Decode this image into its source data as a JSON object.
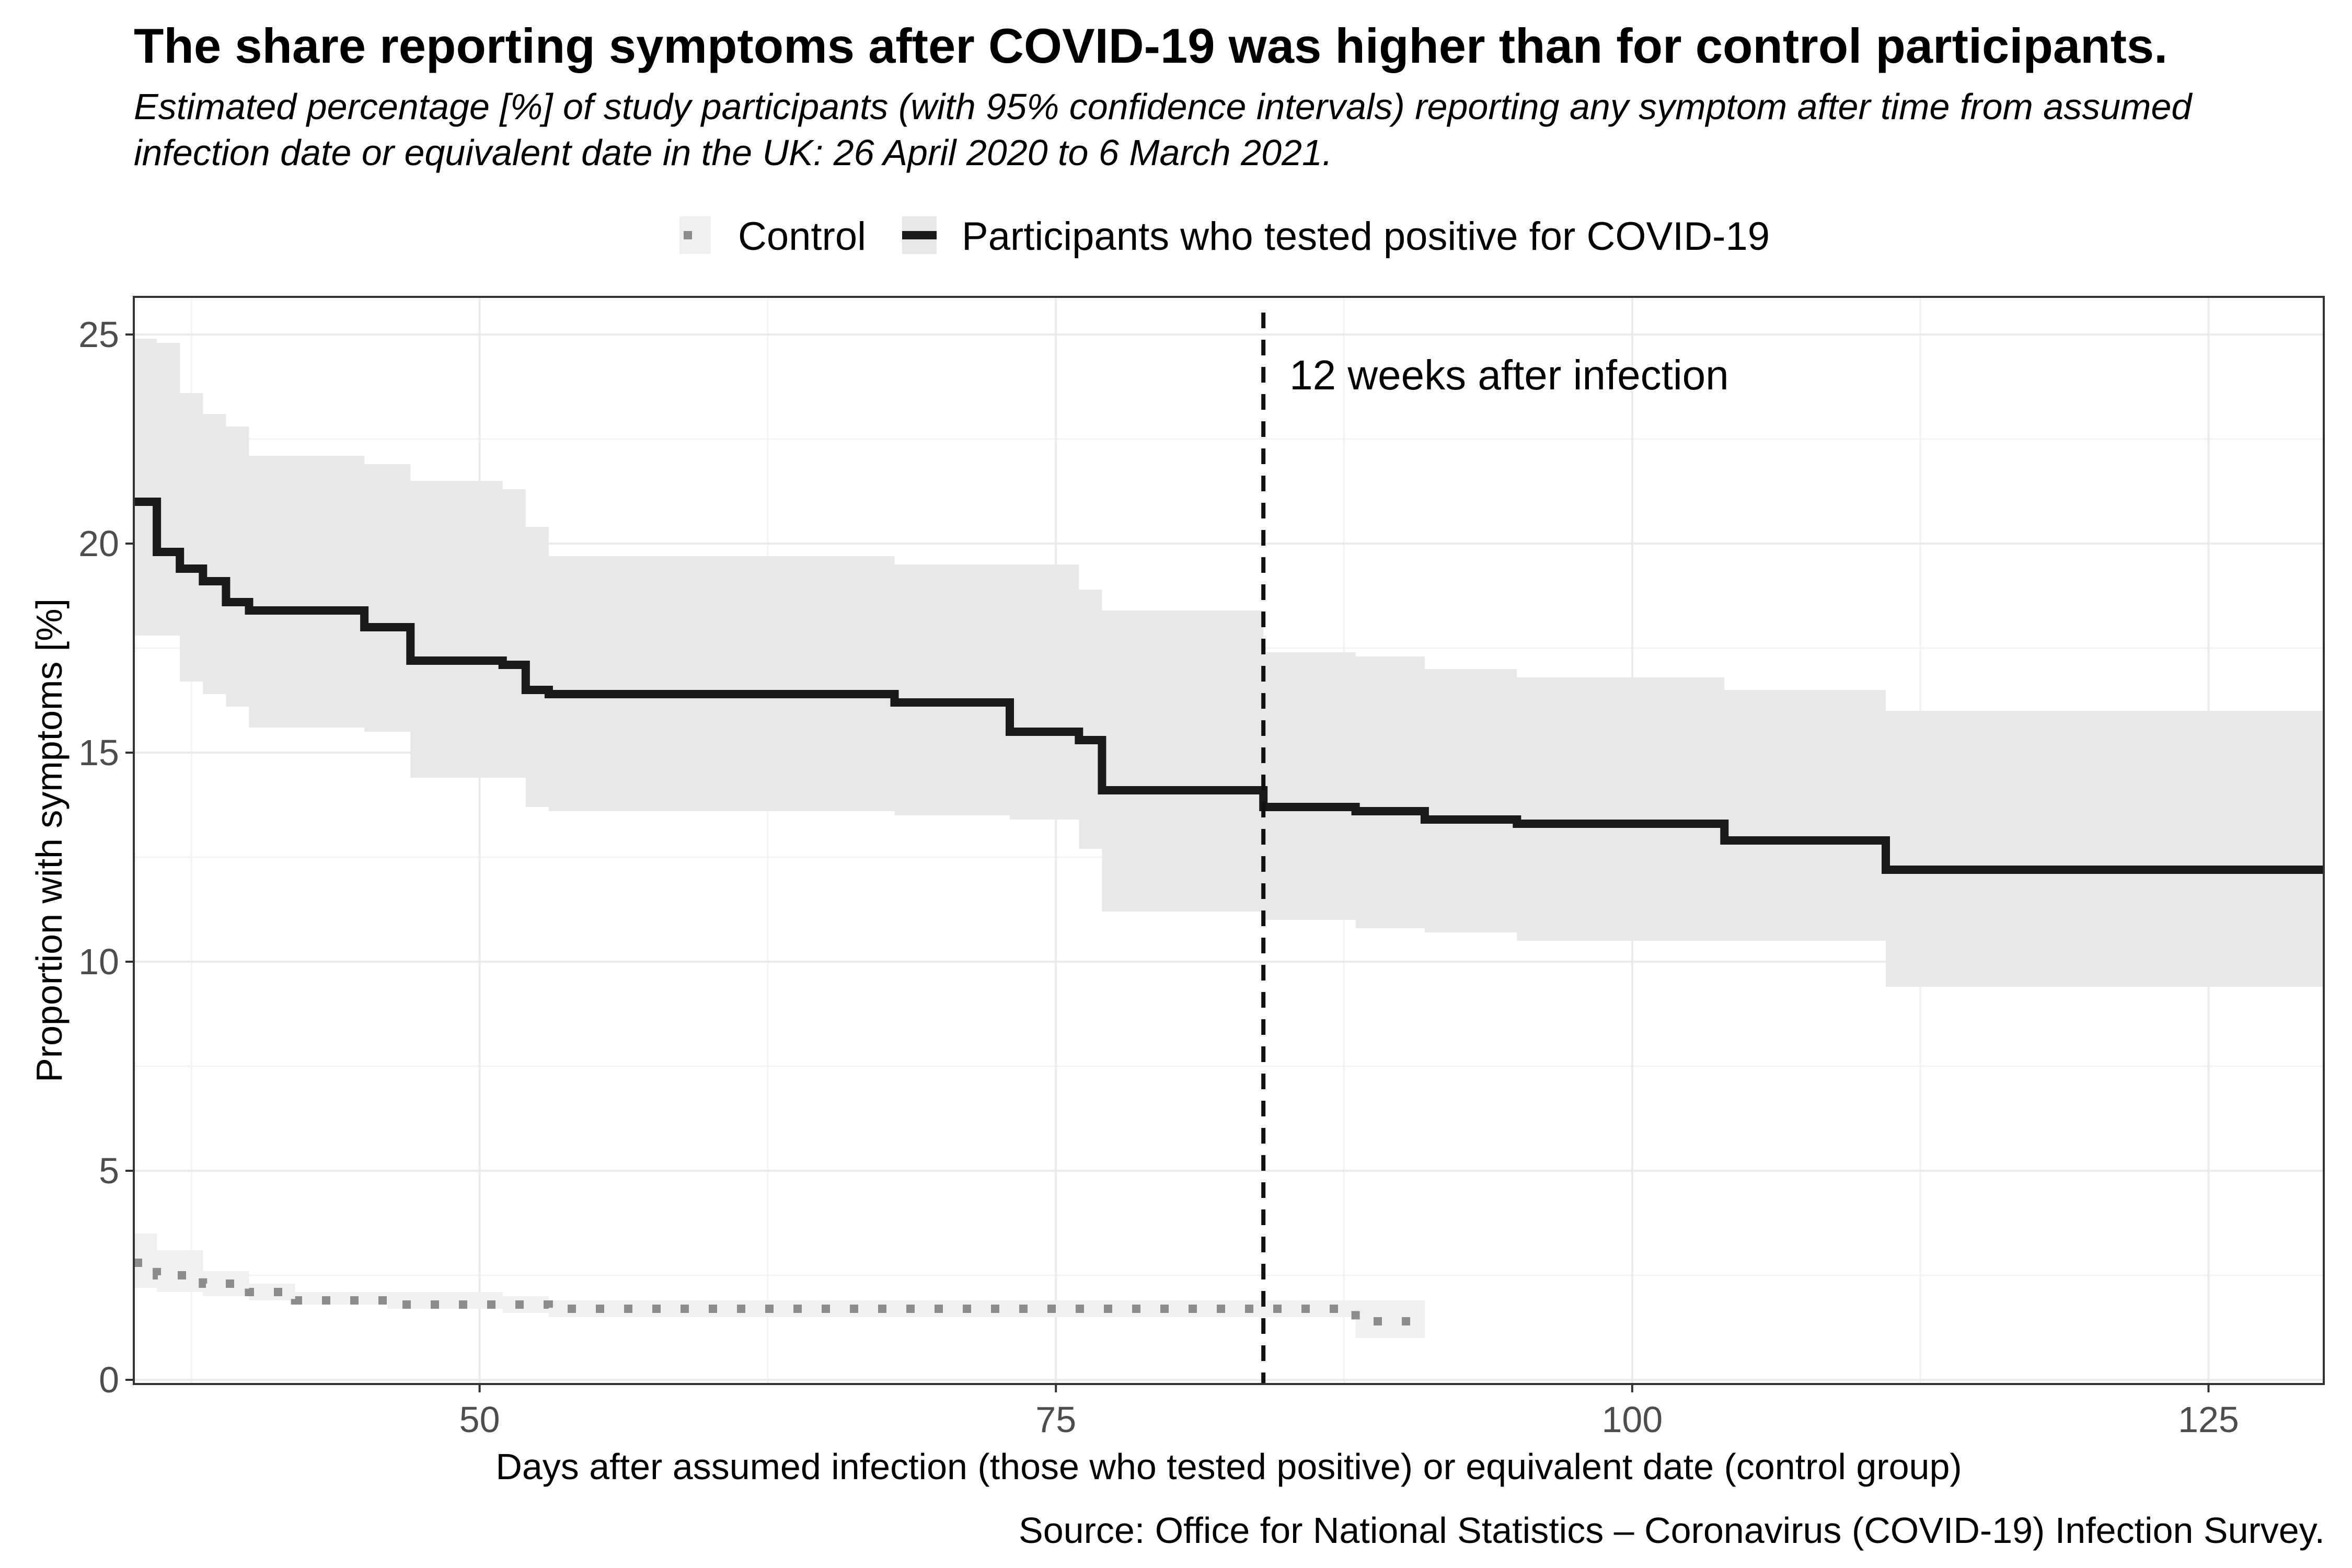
{
  "title": "The share reporting symptoms after COVID-19 was higher than for control participants.",
  "subtitle": "Estimated percentage [%] of study participants (with 95% confidence intervals) reporting any symptom after time from assumed infection date or equivalent date in the UK: 26 April 2020 to 6 March 2021.",
  "source": "Source: Office for National Statistics – Coronavirus (COVID-19) Infection Survey.",
  "chart_data": {
    "type": "line",
    "xlabel": "Days after assumed infection (those who tested positive) or equivalent date (control group)",
    "ylabel": "Proportion with symptoms [%]",
    "xlim": [
      35,
      130
    ],
    "ylim": [
      -0.1,
      25.9
    ],
    "x_ticks": [
      50,
      75,
      100,
      125
    ],
    "y_ticks": [
      0,
      5,
      10,
      15,
      20,
      25
    ],
    "grid": true,
    "legend_position": "top",
    "annotation": {
      "x": 84,
      "text": "12 weeks after infection"
    },
    "series": [
      {
        "name": "Control",
        "style": "dotted",
        "color": "#8c8c8c",
        "band_color": "#f0f0f0",
        "x": [
          35,
          36,
          38,
          40,
          42,
          46,
          51,
          53,
          65,
          75,
          84,
          88,
          91
        ],
        "y": [
          2.8,
          2.5,
          2.3,
          2.1,
          1.9,
          1.8,
          1.8,
          1.7,
          1.7,
          1.7,
          1.7,
          1.4,
          1.4
        ],
        "lower": [
          2.2,
          2.1,
          2.0,
          1.9,
          1.8,
          1.7,
          1.6,
          1.5,
          1.5,
          1.5,
          1.5,
          1.0,
          1.0
        ],
        "upper": [
          3.5,
          3.1,
          2.6,
          2.3,
          2.1,
          2.1,
          2.0,
          1.9,
          1.9,
          1.9,
          1.9,
          1.9,
          1.9
        ]
      },
      {
        "name": "Participants who tested positive for COVID-19",
        "style": "solid",
        "color": "#1a1a1a",
        "band_color": "#e8e8e8",
        "x": [
          35,
          36,
          37,
          38,
          39,
          40,
          45,
          47,
          51,
          52,
          53,
          65,
          68,
          73,
          76,
          77,
          84,
          88,
          91,
          95,
          104,
          111,
          130
        ],
        "y": [
          21.0,
          19.8,
          19.4,
          19.1,
          18.6,
          18.4,
          18.0,
          17.2,
          17.1,
          16.5,
          16.4,
          16.4,
          16.2,
          15.5,
          15.3,
          14.1,
          13.7,
          13.6,
          13.4,
          13.3,
          12.9,
          12.2,
          12.2
        ],
        "lower": [
          17.8,
          17.8,
          16.7,
          16.4,
          16.1,
          15.6,
          15.5,
          14.4,
          14.4,
          13.7,
          13.6,
          13.6,
          13.5,
          13.4,
          12.7,
          11.2,
          11.0,
          10.8,
          10.7,
          10.5,
          10.5,
          9.4,
          9.4
        ],
        "upper": [
          24.9,
          24.8,
          23.6,
          23.1,
          22.8,
          22.1,
          21.9,
          21.5,
          21.3,
          20.4,
          19.7,
          19.7,
          19.5,
          19.5,
          18.9,
          18.4,
          17.4,
          17.3,
          17.0,
          16.8,
          16.5,
          16.0,
          15.9
        ]
      }
    ]
  }
}
